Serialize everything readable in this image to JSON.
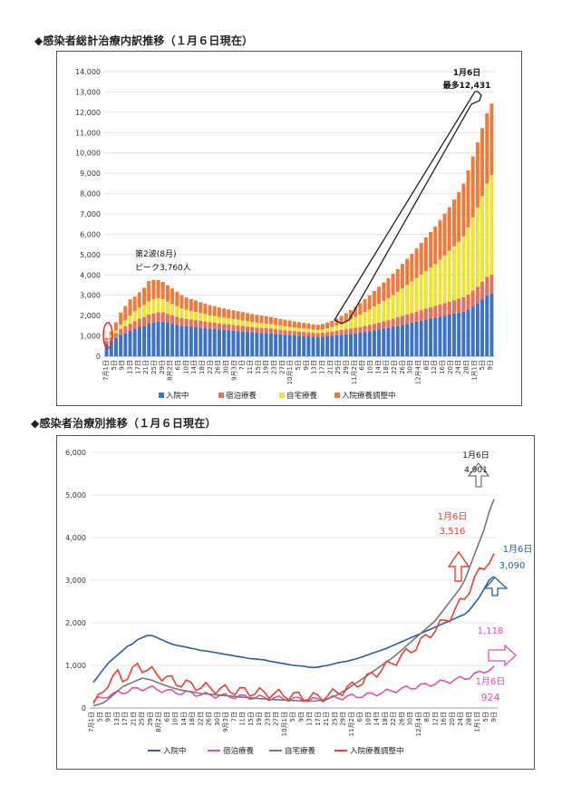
{
  "section1": {
    "title": "◆感染者総計治療内訳推移（１月６日現在）"
  },
  "section2": {
    "title": "◆感染者治療別推移（１月６日現在）"
  },
  "chart_data": [
    {
      "type": "bar",
      "stacked": true,
      "yticks": [
        "0",
        "1,000",
        "2,000",
        "3,000",
        "4,000",
        "5,000",
        "6,000",
        "7,000",
        "8,000",
        "9,000",
        "10,000",
        "11,000",
        "12,000",
        "13,000",
        "14,000"
      ],
      "ylim": [
        0,
        14000
      ],
      "xtick_labels": [
        "7月1日",
        "5日",
        "9日",
        "13日",
        "17日",
        "21日",
        "25日",
        "29日",
        "8月2日",
        "6日",
        "10日",
        "14日",
        "18日",
        "22日",
        "26日",
        "30日",
        "9月3日",
        "7日",
        "11日",
        "15日",
        "19日",
        "23日",
        "27日",
        "10月1日",
        "5日",
        "9日",
        "13日",
        "17日",
        "21日",
        "25日",
        "29日",
        "11月2日",
        "6日",
        "10日",
        "14日",
        "18日",
        "22日",
        "26日",
        "30日",
        "12月4日",
        "8日",
        "12日",
        "16日",
        "20日",
        "24日",
        "28日",
        "1月1日",
        "5日",
        "9日"
      ],
      "legend": [
        "入院中",
        "宿泊療養",
        "自宅療養",
        "入院療養調整中"
      ],
      "colors": [
        "#3d73c4",
        "#e8705a",
        "#ede33a",
        "#ef7a3a"
      ],
      "annotations": {
        "wave2": "第2波(8月)",
        "wave2_peak": "ピーク3,760人",
        "latest_date": "1月6日",
        "latest_max": "最多12,431"
      },
      "series": [
        {
          "name": "入院中",
          "values": [
            600,
            750,
            900,
            1050,
            1150,
            1250,
            1350,
            1450,
            1500,
            1600,
            1650,
            1700,
            1700,
            1650,
            1600,
            1550,
            1500,
            1470,
            1450,
            1430,
            1400,
            1380,
            1350,
            1340,
            1320,
            1300,
            1280,
            1260,
            1240,
            1220,
            1200,
            1180,
            1160,
            1150,
            1140,
            1130,
            1100,
            1080,
            1060,
            1040,
            1020,
            1000,
            990,
            980,
            960,
            950,
            960,
            980,
            1000,
            1030,
            1060,
            1080,
            1100,
            1130,
            1160,
            1200,
            1240,
            1280,
            1320,
            1360,
            1400,
            1450,
            1500,
            1550,
            1600,
            1650,
            1700,
            1750,
            1800,
            1850,
            1900,
            1950,
            2000,
            2050,
            2100,
            2150,
            2200,
            2300,
            2450,
            2600,
            2800,
            3000,
            3090
          ]
        },
        {
          "name": "宿泊療養",
          "values": [
            150,
            200,
            250,
            300,
            320,
            350,
            380,
            400,
            420,
            450,
            460,
            470,
            460,
            440,
            420,
            400,
            380,
            370,
            360,
            350,
            340,
            330,
            320,
            310,
            300,
            290,
            285,
            280,
            275,
            270,
            265,
            260,
            255,
            250,
            245,
            240,
            235,
            230,
            225,
            220,
            215,
            210,
            205,
            200,
            195,
            190,
            200,
            210,
            220,
            230,
            240,
            250,
            260,
            270,
            280,
            290,
            300,
            320,
            340,
            360,
            380,
            400,
            420,
            440,
            460,
            480,
            500,
            520,
            540,
            560,
            580,
            600,
            620,
            640,
            660,
            680,
            700,
            740,
            780,
            820,
            870,
            900,
            924
          ]
        },
        {
          "name": "自宅療養",
          "values": [
            50,
            80,
            120,
            200,
            300,
            400,
            500,
            550,
            600,
            650,
            700,
            680,
            650,
            600,
            560,
            520,
            480,
            450,
            420,
            400,
            380,
            360,
            340,
            330,
            320,
            310,
            300,
            290,
            280,
            270,
            260,
            250,
            240,
            230,
            220,
            210,
            200,
            195,
            190,
            185,
            180,
            175,
            170,
            165,
            160,
            160,
            170,
            190,
            220,
            260,
            310,
            380,
            450,
            530,
            600,
            680,
            760,
            840,
            920,
            1000,
            1080,
            1160,
            1250,
            1350,
            1450,
            1550,
            1650,
            1750,
            1850,
            1950,
            2050,
            2200,
            2350,
            2500,
            2650,
            2800,
            3000,
            3300,
            3600,
            3900,
            4200,
            4600,
            4901
          ]
        },
        {
          "name": "入院療養調整中",
          "values": [
            100,
            200,
            400,
            600,
            700,
            800,
            700,
            750,
            850,
            1000,
            950,
            900,
            850,
            800,
            750,
            700,
            650,
            600,
            580,
            560,
            540,
            520,
            500,
            480,
            460,
            450,
            440,
            430,
            420,
            410,
            400,
            390,
            380,
            370,
            360,
            350,
            340,
            330,
            320,
            310,
            300,
            290,
            280,
            270,
            260,
            250,
            260,
            280,
            300,
            330,
            370,
            410,
            460,
            510,
            570,
            630,
            700,
            770,
            840,
            910,
            980,
            1050,
            1120,
            1200,
            1280,
            1360,
            1450,
            1550,
            1650,
            1750,
            1850,
            1950,
            2050,
            2150,
            2300,
            2450,
            2600,
            2800,
            3000,
            3200,
            3350,
            3450,
            3516
          ]
        }
      ]
    },
    {
      "type": "line",
      "yticks": [
        "0",
        "1,000",
        "2,000",
        "3,000",
        "4,000",
        "5,000",
        "6,000"
      ],
      "ylim": [
        0,
        6000
      ],
      "xtick_labels": [
        "7月1日",
        "5日",
        "9日",
        "13日",
        "17日",
        "21日",
        "25日",
        "29日",
        "8月2日",
        "6日",
        "10日",
        "14日",
        "18日",
        "22日",
        "26日",
        "30日",
        "9月3日",
        "7日",
        "11日",
        "15日",
        "19日",
        "23日",
        "27日",
        "10月1日",
        "5日",
        "9日",
        "13日",
        "17日",
        "21日",
        "25日",
        "29日",
        "11月2日",
        "6日",
        "10日",
        "14日",
        "18日",
        "22日",
        "26日",
        "30日",
        "12月4日",
        "8日",
        "12日",
        "16日",
        "20日",
        "24日",
        "28日",
        "1月1日",
        "5日",
        "9日"
      ],
      "legend": [
        "入院中",
        "宿泊療養",
        "自宅療養",
        "入院療養調整中"
      ],
      "colors": [
        "#2a5caa",
        "#e050b0",
        "#777777",
        "#e8402a"
      ],
      "annotations": {
        "jiitaku_date": "1月6日",
        "jiitaku_value": "4,901",
        "chosei_date": "1月6日",
        "chosei_value": "3,516",
        "nyuin_date": "1月6日",
        "nyuin_value": "3,090",
        "shukuhaku_prev": "1,118",
        "shukuhaku_date": "1月6日",
        "shukuhaku_value": "924"
      }
    }
  ]
}
